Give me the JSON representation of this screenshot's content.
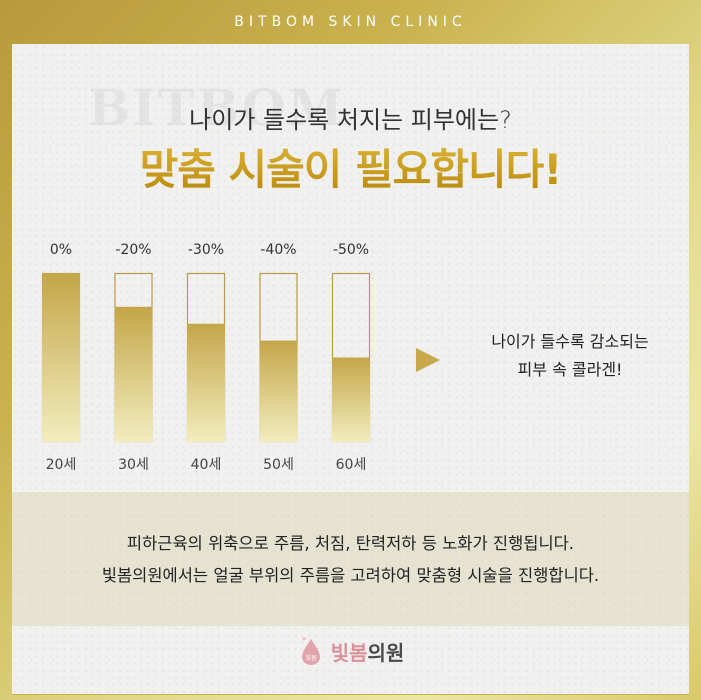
{
  "header": {
    "brand": "BITBOM SKIN CLINIC"
  },
  "watermark": "BITBOM",
  "hero": {
    "subtitle": "나이가 들수록 처지는 피부에는?",
    "headline": "맞춤 시술이 필요합니다!"
  },
  "chart_data": {
    "type": "bar",
    "categories": [
      "20세",
      "30세",
      "40세",
      "50세",
      "60세"
    ],
    "values": [
      0,
      -20,
      -30,
      -40,
      -50
    ],
    "data_labels": [
      "0%",
      "-20%",
      "-30%",
      "-40%",
      "-50%"
    ],
    "ylim": [
      -100,
      0
    ],
    "colors": {
      "fill_top": "#c4a649",
      "fill_bottom": "#f2edbe",
      "outline": "#b89d48"
    }
  },
  "side_note": {
    "line1": "나이가 들수록 감소되는",
    "line2": "피부 속 콜라겐!"
  },
  "description": {
    "line1": "피하근육의 위축으로 주름, 처짐, 탄력저하 등 노화가 진행됩니다.",
    "line2": "빛봄의원에서는 얼굴 부위의 주름을 고려하여 맞춤형 시술을 진행합니다."
  },
  "logo": {
    "text_pink": "빛봄",
    "text_dark": "의원",
    "mark_text": "빛봄"
  },
  "colors": {
    "gold": "#c8a84a",
    "pink": "#d89099"
  }
}
